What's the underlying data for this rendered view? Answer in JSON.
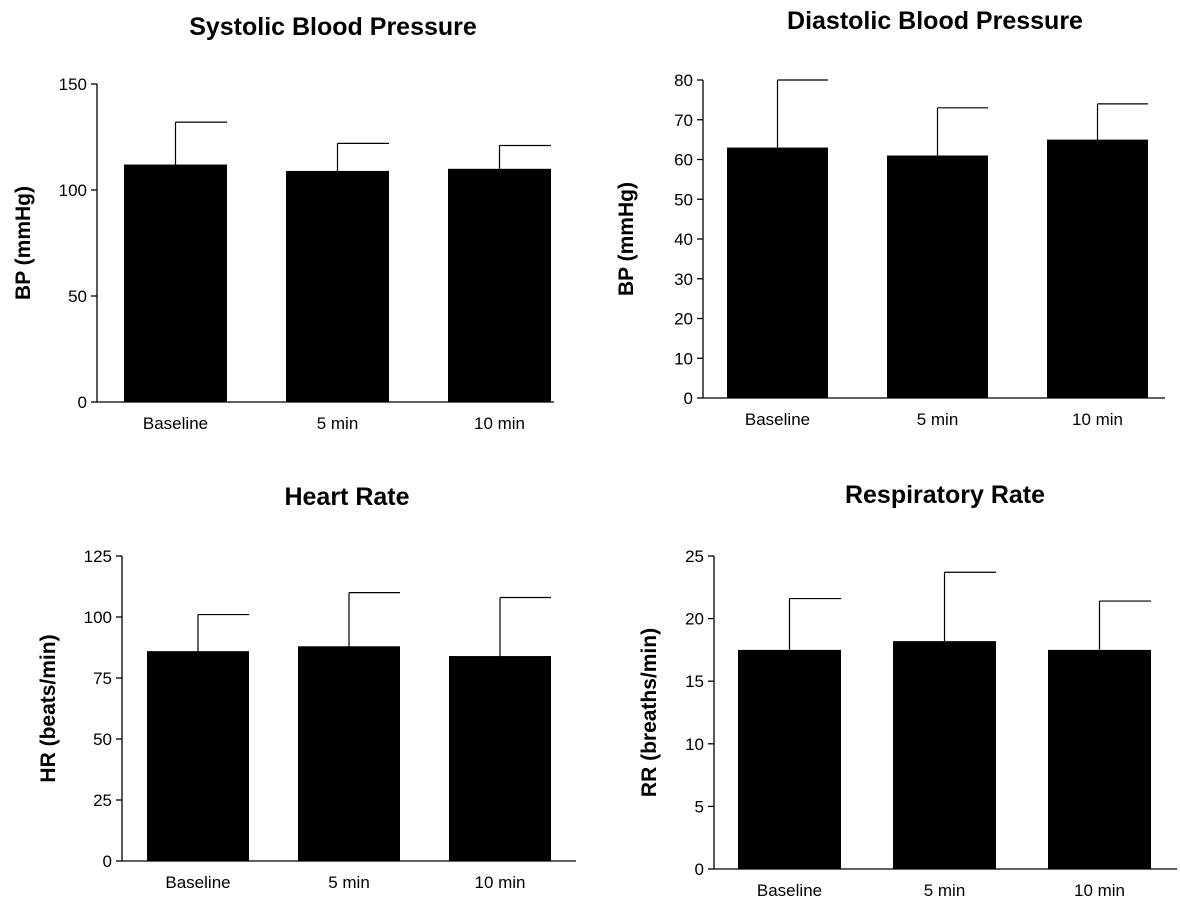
{
  "chart_data": [
    {
      "type": "bar",
      "title": "Systolic Blood Pressure",
      "xlabel": "",
      "ylabel": "BP (mmHg)",
      "categories": [
        "Baseline",
        "5 min",
        "10 min"
      ],
      "values": [
        112,
        109,
        110
      ],
      "error_upper": [
        132,
        122,
        121
      ],
      "ylim": [
        0,
        150
      ],
      "yticks": [
        0,
        50,
        100,
        150
      ],
      "grid": false,
      "bar_color": "#000000"
    },
    {
      "type": "bar",
      "title": "Diastolic Blood Pressure",
      "xlabel": "",
      "ylabel": "BP (mmHg)",
      "categories": [
        "Baseline",
        "5 min",
        "10 min"
      ],
      "values": [
        63,
        61,
        65
      ],
      "error_upper": [
        80,
        73,
        74
      ],
      "ylim": [
        0,
        80
      ],
      "yticks": [
        0,
        10,
        20,
        30,
        40,
        50,
        60,
        70,
        80
      ],
      "grid": false,
      "bar_color": "#000000"
    },
    {
      "type": "bar",
      "title": "Heart Rate",
      "xlabel": "",
      "ylabel": "HR (beats/min)",
      "categories": [
        "Baseline",
        "5 min",
        "10 min"
      ],
      "values": [
        86,
        88,
        84
      ],
      "error_upper": [
        101,
        110,
        108
      ],
      "ylim": [
        0,
        125
      ],
      "yticks": [
        0,
        25,
        50,
        75,
        100,
        125
      ],
      "grid": false,
      "bar_color": "#000000"
    },
    {
      "type": "bar",
      "title": "Respiratory Rate",
      "xlabel": "",
      "ylabel": "RR (breaths/min)",
      "categories": [
        "Baseline",
        "5 min",
        "10 min"
      ],
      "values": [
        17.5,
        18.2,
        17.5
      ],
      "error_upper": [
        21.6,
        23.7,
        21.4
      ],
      "ylim": [
        0,
        25
      ],
      "yticks": [
        0,
        5,
        10,
        15,
        20,
        25
      ],
      "grid": false,
      "bar_color": "#000000"
    }
  ]
}
